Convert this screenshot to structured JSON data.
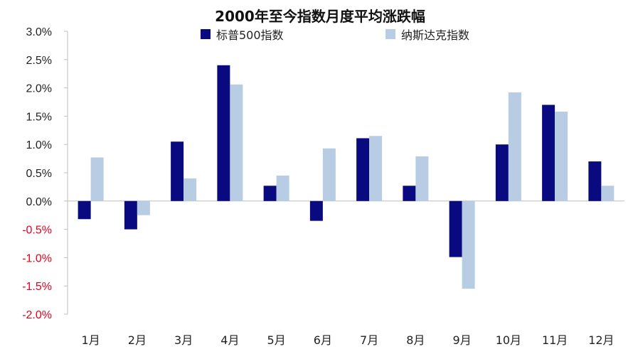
{
  "chart_data": {
    "type": "bar",
    "title": "2000年至今指数月度平均涨跌幅",
    "categories": [
      "1月",
      "2月",
      "3月",
      "4月",
      "5月",
      "6月",
      "7月",
      "8月",
      "9月",
      "10月",
      "11月",
      "12月"
    ],
    "series": [
      {
        "name": "标普500指数",
        "color": "#0a0a80",
        "values": [
          -0.32,
          -0.5,
          1.05,
          2.4,
          0.27,
          -0.35,
          1.11,
          0.27,
          -0.99,
          1.0,
          1.7,
          0.7
        ]
      },
      {
        "name": "纳斯达克指数",
        "color": "#b8cce4",
        "values": [
          0.77,
          -0.25,
          0.4,
          2.06,
          0.45,
          0.93,
          1.15,
          0.79,
          -1.55,
          1.92,
          1.58,
          0.27
        ]
      }
    ],
    "ylim": [
      -2.0,
      3.0
    ],
    "yticks": [
      "3.0%",
      "2.5%",
      "2.0%",
      "1.5%",
      "1.0%",
      "0.5%",
      "0.0%",
      "-0.5%",
      "-1.0%",
      "-1.5%",
      "-2.0%"
    ],
    "ytick_values": [
      3.0,
      2.5,
      2.0,
      1.5,
      1.0,
      0.5,
      0.0,
      -0.5,
      -1.0,
      -1.5,
      -2.0
    ],
    "positive_tick_color": "#222222",
    "negative_tick_color": "#e8001c",
    "legend_position": "top",
    "grid": false
  }
}
